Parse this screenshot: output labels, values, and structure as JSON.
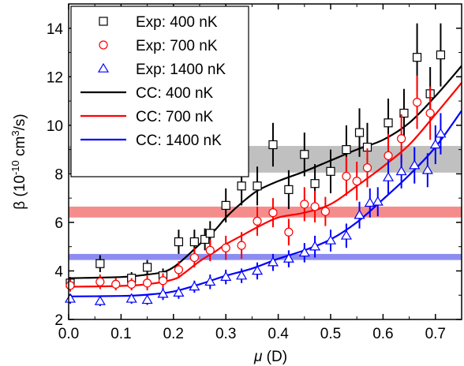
{
  "chart_data": {
    "type": "scatter",
    "title": "",
    "xlabel": "μ (D)",
    "ylabel": "β (10⁻¹⁰ cm³/s)",
    "xlim": [
      0.0,
      0.75
    ],
    "ylim": [
      2,
      15
    ],
    "xticks": [
      "0.0",
      "0.1",
      "0.2",
      "0.3",
      "0.4",
      "0.5",
      "0.6",
      "0.7"
    ],
    "yticks": [
      "2",
      "4",
      "6",
      "8",
      "10",
      "12",
      "14"
    ],
    "bands": [
      {
        "y0": 8.05,
        "y1": 9.15,
        "color": "#c0c0c0"
      },
      {
        "y0": 6.2,
        "y1": 6.65,
        "color": "#f58c8c"
      },
      {
        "y0": 4.45,
        "y1": 4.7,
        "color": "#8c8cf0"
      }
    ],
    "series": [
      {
        "name": "Exp: 400 nK",
        "kind": "points",
        "marker": "square",
        "color": "#000000",
        "x": [
          0.003,
          0.06,
          0.12,
          0.15,
          0.18,
          0.21,
          0.24,
          0.26,
          0.27,
          0.3,
          0.33,
          0.36,
          0.39,
          0.42,
          0.45,
          0.47,
          0.5,
          0.53,
          0.555,
          0.57,
          0.61,
          0.64,
          0.665,
          0.69,
          0.71
        ],
        "y": [
          3.5,
          4.3,
          3.7,
          4.15,
          3.8,
          5.2,
          5.2,
          5.3,
          5.55,
          6.7,
          7.5,
          7.5,
          9.2,
          7.35,
          8.8,
          7.6,
          8.1,
          9.0,
          9.7,
          9.1,
          10.1,
          10.5,
          12.8,
          11.3,
          12.9
        ],
        "err": [
          0.25,
          0.35,
          0.25,
          0.3,
          0.3,
          0.5,
          0.5,
          0.45,
          0.5,
          0.7,
          0.8,
          0.8,
          0.9,
          0.8,
          0.9,
          0.8,
          0.9,
          1.0,
          1.0,
          1.0,
          1.0,
          1.0,
          1.4,
          1.1,
          1.3
        ]
      },
      {
        "name": "Exp: 700 nK",
        "kind": "points",
        "marker": "circle",
        "color": "#ff0000",
        "x": [
          0.003,
          0.06,
          0.09,
          0.12,
          0.15,
          0.18,
          0.21,
          0.24,
          0.27,
          0.3,
          0.33,
          0.36,
          0.39,
          0.42,
          0.45,
          0.47,
          0.49,
          0.53,
          0.55,
          0.57,
          0.61,
          0.635,
          0.665,
          0.69
        ],
        "y": [
          3.4,
          3.55,
          3.45,
          3.45,
          3.5,
          3.6,
          4.05,
          4.55,
          4.85,
          4.95,
          5.05,
          6.05,
          6.4,
          5.6,
          6.75,
          6.65,
          6.45,
          7.9,
          7.7,
          8.25,
          8.75,
          9.45,
          10.95,
          10.5
        ],
        "err": [
          0.25,
          0.3,
          0.25,
          0.25,
          0.3,
          0.3,
          0.35,
          0.4,
          0.45,
          0.5,
          0.55,
          0.6,
          0.6,
          0.55,
          0.7,
          0.65,
          0.6,
          0.8,
          0.8,
          0.8,
          0.9,
          1.0,
          1.1,
          1.1
        ]
      },
      {
        "name": "Exp: 1400 nK",
        "kind": "points",
        "marker": "triangle",
        "color": "#0000ff",
        "x": [
          0.003,
          0.06,
          0.12,
          0.15,
          0.18,
          0.21,
          0.24,
          0.27,
          0.3,
          0.33,
          0.36,
          0.39,
          0.42,
          0.45,
          0.47,
          0.5,
          0.53,
          0.555,
          0.575,
          0.59,
          0.61,
          0.635,
          0.66,
          0.685,
          0.7,
          0.71
        ],
        "y": [
          2.85,
          2.75,
          2.85,
          2.8,
          3.05,
          3.1,
          3.35,
          3.55,
          3.75,
          3.8,
          4.0,
          4.35,
          4.5,
          4.75,
          5.0,
          5.25,
          5.45,
          6.3,
          6.8,
          6.85,
          7.85,
          8.1,
          8.35,
          8.15,
          9.2,
          9.65
        ],
        "err": [
          0.2,
          0.2,
          0.2,
          0.2,
          0.25,
          0.25,
          0.25,
          0.3,
          0.3,
          0.3,
          0.35,
          0.35,
          0.35,
          0.4,
          0.45,
          0.45,
          0.5,
          0.55,
          0.6,
          0.6,
          0.7,
          0.7,
          0.75,
          0.7,
          0.8,
          0.85
        ]
      },
      {
        "name": "CC: 400 nK",
        "kind": "line",
        "color": "#000000",
        "x": [
          0.0,
          0.1,
          0.15,
          0.18,
          0.2,
          0.22,
          0.25,
          0.28,
          0.3,
          0.33,
          0.36,
          0.4,
          0.45,
          0.5,
          0.55,
          0.6,
          0.65,
          0.7,
          0.75
        ],
        "y": [
          3.7,
          3.75,
          3.85,
          3.95,
          4.15,
          4.5,
          5.1,
          5.7,
          6.2,
          6.8,
          7.3,
          7.7,
          8.1,
          8.55,
          9.0,
          9.4,
          10.1,
          11.2,
          12.45
        ]
      },
      {
        "name": "CC: 700 nK",
        "kind": "line",
        "color": "#ff0000",
        "x": [
          0.0,
          0.1,
          0.15,
          0.2,
          0.22,
          0.25,
          0.28,
          0.3,
          0.33,
          0.36,
          0.4,
          0.45,
          0.5,
          0.55,
          0.6,
          0.65,
          0.7,
          0.75
        ],
        "y": [
          3.35,
          3.38,
          3.45,
          3.65,
          3.9,
          4.4,
          4.8,
          5.1,
          5.45,
          5.8,
          6.2,
          6.4,
          6.75,
          7.5,
          8.3,
          9.2,
          10.45,
          11.75
        ]
      },
      {
        "name": "CC: 1400 nK",
        "kind": "line",
        "color": "#0000ff",
        "x": [
          0.0,
          0.1,
          0.15,
          0.2,
          0.25,
          0.3,
          0.35,
          0.4,
          0.45,
          0.5,
          0.55,
          0.6,
          0.65,
          0.7,
          0.75
        ],
        "y": [
          2.95,
          2.97,
          3.02,
          3.15,
          3.45,
          3.8,
          4.1,
          4.5,
          4.85,
          5.3,
          6.0,
          6.95,
          7.95,
          9.1,
          10.6
        ]
      }
    ],
    "grid": false,
    "legend_placement": "top-left"
  }
}
